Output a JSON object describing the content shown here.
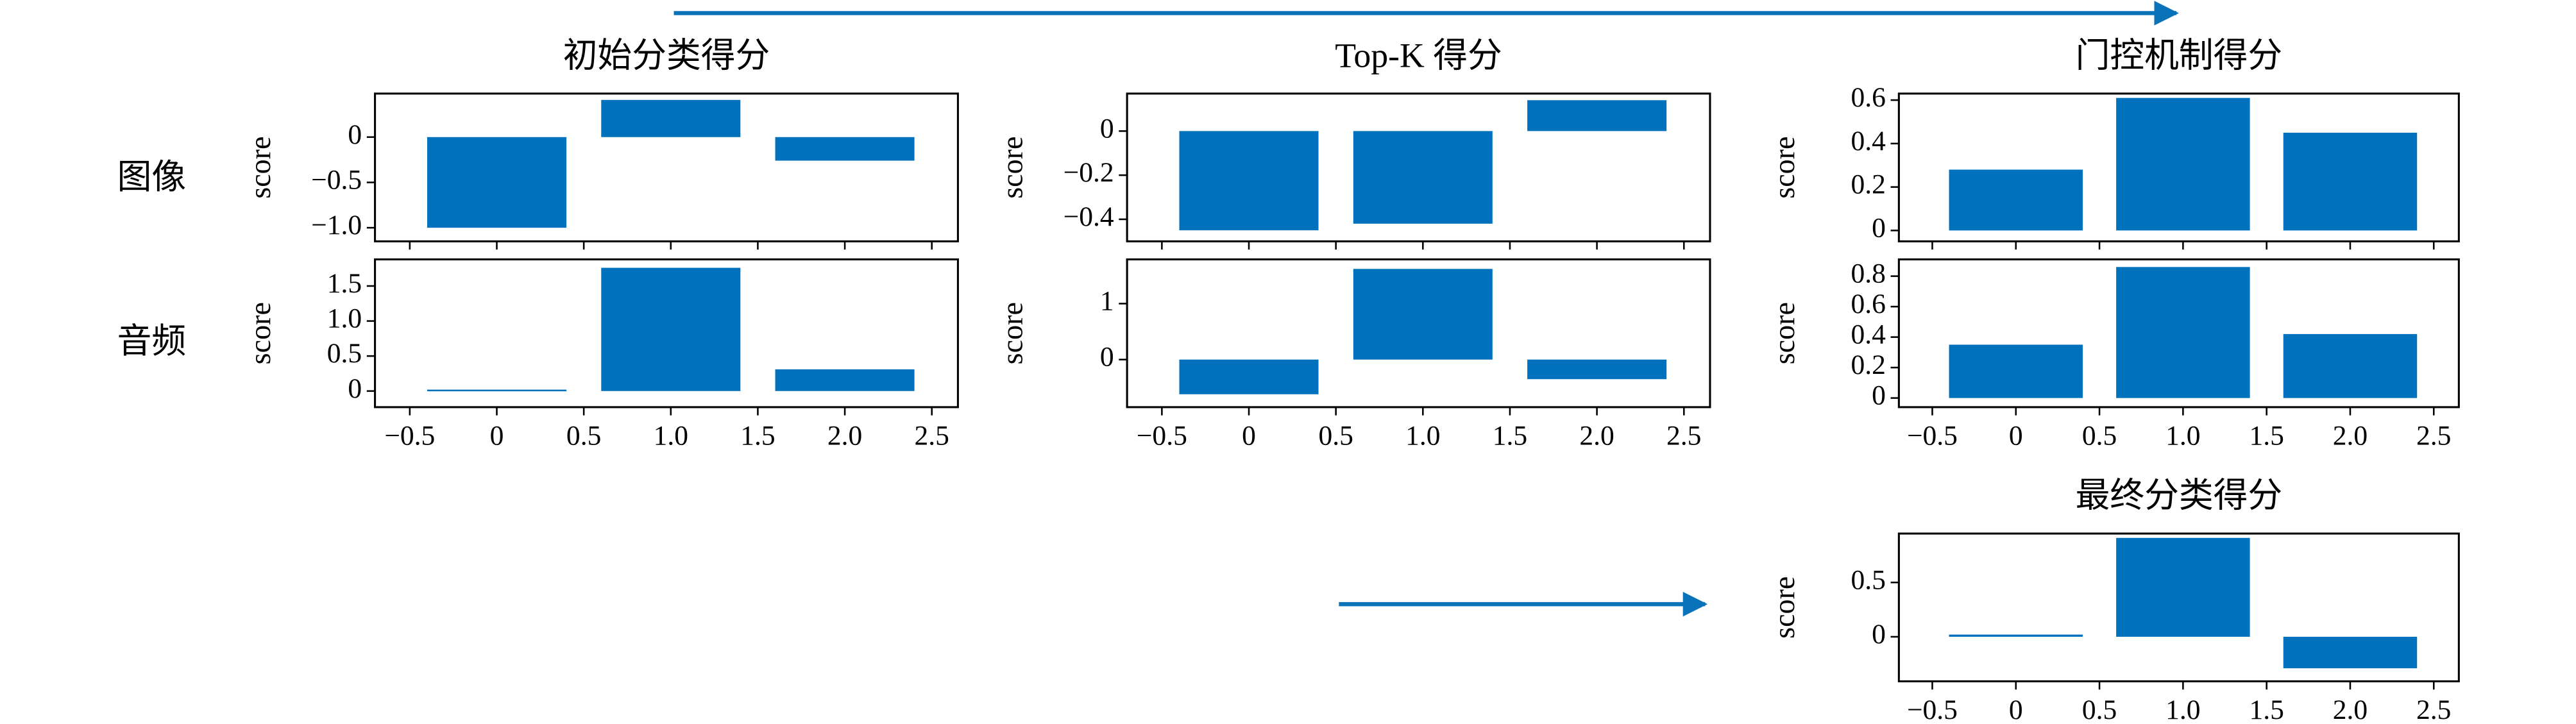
{
  "row_labels": [
    "图像",
    "音频"
  ],
  "chart_data": [
    {
      "type": "bar",
      "title": "初始分类得分",
      "ylabel": "score",
      "x": [
        0,
        1,
        2
      ],
      "values": [
        -1.0,
        0.41,
        -0.26
      ],
      "color": "#0072bd",
      "xlim": [
        -0.7,
        2.65
      ],
      "ylim": [
        -1.15,
        0.48
      ],
      "xticks": [
        -0.5,
        0,
        0.5,
        1,
        1.5,
        2,
        2.5
      ],
      "yticks": [
        {
          "value": -1,
          "label": "−1.0"
        },
        {
          "value": -0.5,
          "label": "−0.5"
        },
        0
      ]
    },
    {
      "type": "bar",
      "ylabel": "score",
      "x": [
        0,
        1,
        2
      ],
      "values": [
        0.02,
        1.76,
        0.31
      ],
      "color": "#0072bd",
      "xlim": [
        -0.7,
        2.65
      ],
      "ylim": [
        -0.23,
        1.88
      ],
      "xticks": [
        {
          "value": -0.5,
          "label": "−0.5"
        },
        0,
        0.5,
        {
          "value": 1,
          "label": "1.0"
        },
        1.5,
        {
          "value": 2,
          "label": "2.0"
        },
        2.5
      ],
      "yticks": [
        0,
        0.5,
        {
          "value": 1,
          "label": "1.0"
        },
        1.5
      ]
    },
    {
      "type": "bar",
      "title": "Top-K 得分",
      "ylabel": "score",
      "x": [
        0,
        1,
        2
      ],
      "values": [
        -0.45,
        -0.42,
        0.14
      ],
      "color": "#0072bd",
      "xlim": [
        -0.7,
        2.65
      ],
      "ylim": [
        -0.5,
        0.17
      ],
      "xticks": [
        -0.5,
        0,
        0.5,
        1,
        1.5,
        2,
        2.5
      ],
      "yticks": [
        {
          "value": -0.4,
          "label": "−0.4"
        },
        {
          "value": -0.2,
          "label": "−0.2"
        },
        0
      ]
    },
    {
      "type": "bar",
      "ylabel": "score",
      "x": [
        0,
        1,
        2
      ],
      "values": [
        -0.62,
        1.62,
        -0.35
      ],
      "color": "#0072bd",
      "xlim": [
        -0.7,
        2.65
      ],
      "ylim": [
        -0.85,
        1.79
      ],
      "xticks": [
        {
          "value": -0.5,
          "label": "−0.5"
        },
        0,
        0.5,
        {
          "value": 1,
          "label": "1.0"
        },
        1.5,
        {
          "value": 2,
          "label": "2.0"
        },
        2.5
      ],
      "yticks": [
        0,
        1
      ]
    },
    {
      "type": "bar",
      "title": "门控机制得分",
      "ylabel": "score",
      "x": [
        0,
        1,
        2
      ],
      "values": [
        0.28,
        0.61,
        0.45
      ],
      "color": "#0072bd",
      "xlim": [
        -0.7,
        2.65
      ],
      "ylim": [
        -0.05,
        0.63
      ],
      "xticks": [
        -0.5,
        0,
        0.5,
        1,
        1.5,
        2,
        2.5
      ],
      "yticks": [
        0,
        0.2,
        0.4,
        0.6
      ]
    },
    {
      "type": "bar",
      "ylabel": "score",
      "x": [
        0,
        1,
        2
      ],
      "values": [
        0.35,
        0.86,
        0.42
      ],
      "color": "#0072bd",
      "xlim": [
        -0.7,
        2.65
      ],
      "ylim": [
        -0.06,
        0.91
      ],
      "xticks": [
        {
          "value": -0.5,
          "label": "−0.5"
        },
        0,
        0.5,
        {
          "value": 1,
          "label": "1.0"
        },
        1.5,
        {
          "value": 2,
          "label": "2.0"
        },
        2.5
      ],
      "yticks": [
        0,
        0.2,
        0.4,
        0.6,
        0.8
      ]
    },
    {
      "type": "bar",
      "title": "最终分类得分",
      "ylabel": "score",
      "x": [
        0,
        1,
        2
      ],
      "values": [
        0.02,
        0.91,
        -0.29
      ],
      "color": "#0072bd",
      "xlim": [
        -0.7,
        2.65
      ],
      "ylim": [
        -0.41,
        0.95
      ],
      "xticks": [
        {
          "value": -0.5,
          "label": "−0.5"
        },
        0,
        0.5,
        {
          "value": 1,
          "label": "1.0"
        },
        1.5,
        {
          "value": 2,
          "label": "2.0"
        },
        2.5
      ],
      "yticks": [
        0,
        0.5
      ]
    }
  ]
}
